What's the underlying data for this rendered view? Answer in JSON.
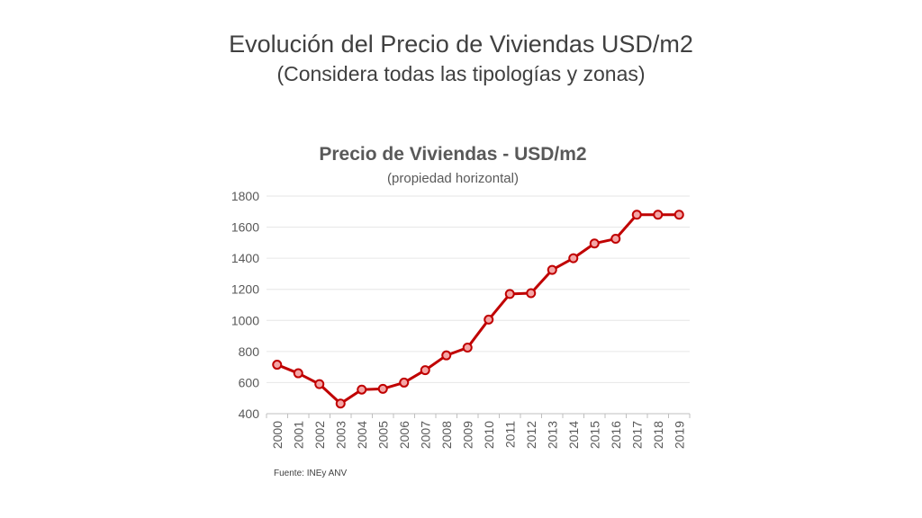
{
  "slide": {
    "title": "Evolución del Precio de Viviendas USD/m2",
    "subtitle": "(Considera todas las tipologías y zonas)"
  },
  "chart_data": {
    "type": "line",
    "title": "Precio de Viviendas - USD/m2",
    "subtitle": "(propiedad horizontal)",
    "xlabel": "",
    "ylabel": "",
    "x": [
      "2000",
      "2001",
      "2002",
      "2003",
      "2004",
      "2005",
      "2006",
      "2007",
      "2008",
      "2009",
      "2010",
      "2011",
      "2012",
      "2013",
      "2014",
      "2015",
      "2016",
      "2017",
      "2018",
      "2019"
    ],
    "series": [
      {
        "values": [
          715,
          660,
          590,
          465,
          555,
          560,
          600,
          680,
          775,
          825,
          1005,
          1170,
          1175,
          1325,
          1400,
          1495,
          1525,
          1680,
          1680,
          1680
        ]
      }
    ],
    "ylim": [
      400,
      1800
    ],
    "yticks": [
      400,
      600,
      800,
      1000,
      1200,
      1400,
      1600,
      1800
    ],
    "grid": true,
    "legend": "none",
    "line_color": "#c00000",
    "marker_fill": "#f4a6a6",
    "grid_color": "#e6e6e6",
    "source": "Fuente: INEy ANV"
  }
}
